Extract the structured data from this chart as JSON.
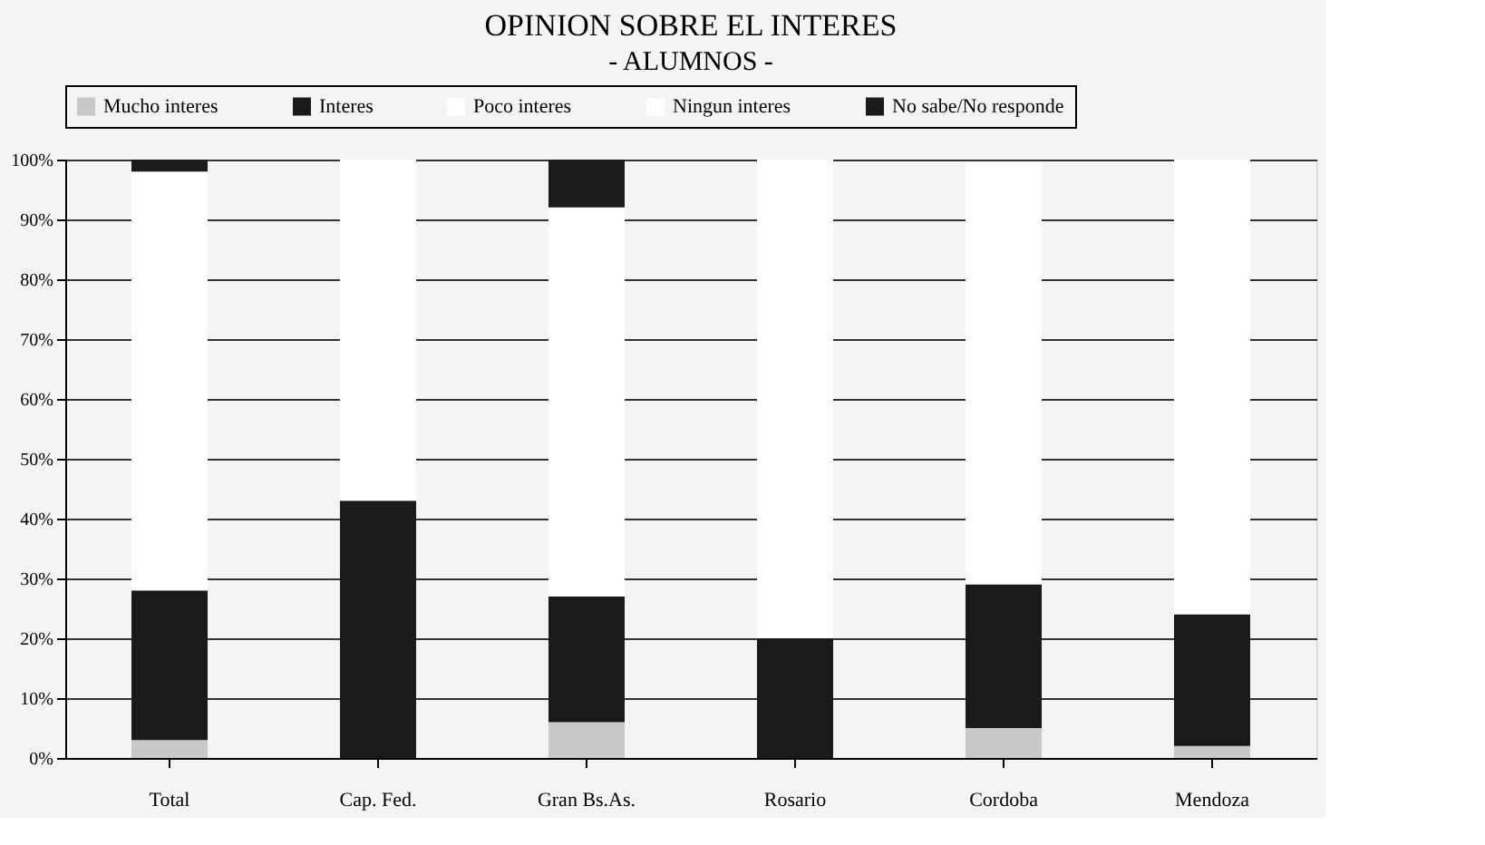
{
  "chart_data": {
    "type": "bar",
    "title": "OPINION SOBRE EL INTERES",
    "subtitle": "- ALUMNOS -",
    "categories": [
      "Total",
      "Cap. Fed.",
      "Gran Bs.As.",
      "Rosario",
      "Cordoba",
      "Mendoza"
    ],
    "stacked": true,
    "series": [
      {
        "name": "Mucho interes",
        "color": "#c8c8c8",
        "values": [
          3,
          null,
          6,
          null,
          5,
          2
        ]
      },
      {
        "name": "Interes",
        "color": "#1a1a1a",
        "values": [
          25,
          43,
          21,
          20,
          24,
          22
        ]
      },
      {
        "name": "Poco interes",
        "color": "#ffffff",
        "values": [
          70,
          57,
          65,
          80,
          70.5,
          76
        ]
      },
      {
        "name": "Ningun interes",
        "color": "#ffffff",
        "values": [
          null,
          null,
          null,
          null,
          null,
          null
        ]
      },
      {
        "name": "No sabe/No responde",
        "color": "#1a1a1a",
        "values": [
          2,
          null,
          8,
          null,
          null,
          null
        ]
      }
    ],
    "ylim": [
      0,
      100
    ],
    "yticks": [
      {
        "value": 0,
        "label": "0%"
      },
      {
        "value": 10,
        "label": "10%"
      },
      {
        "value": 20,
        "label": "20%"
      },
      {
        "value": 30,
        "label": "30%"
      },
      {
        "value": 40,
        "label": "40%"
      },
      {
        "value": 50,
        "label": "50%"
      },
      {
        "value": 60,
        "label": "60%"
      },
      {
        "value": 70,
        "label": "70%"
      },
      {
        "value": 80,
        "label": "80%"
      },
      {
        "value": 90,
        "label": "90%"
      },
      {
        "value": 100,
        "label": "100%"
      }
    ],
    "grid": "y",
    "legend": "top"
  }
}
